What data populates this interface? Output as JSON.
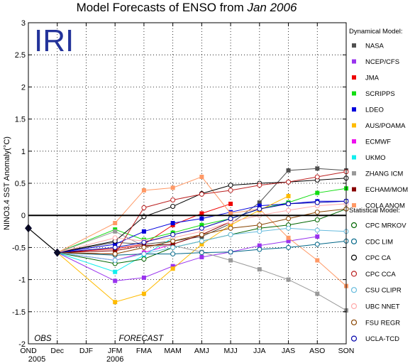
{
  "chart_data": {
    "type": "line",
    "title_main": "Model Forecasts of ENSO from ",
    "title_date": "Jan 2006",
    "logo_text": "IRI",
    "ylabel": "NINO3.4 SST Anomaly(°C)",
    "ylim": [
      -2,
      3
    ],
    "yticks": [
      -2,
      -1.5,
      -1,
      -0.5,
      0,
      0.5,
      1,
      1.5,
      2,
      2.5,
      3
    ],
    "x_labels": [
      "OND",
      "Dec",
      "DJF",
      "JFM",
      "FMA",
      "MAM",
      "AMJ",
      "MJJ",
      "JJA",
      "JAS",
      "ASO",
      "SON"
    ],
    "year_labels": [
      {
        "text": "2005",
        "x_index": 0
      },
      {
        "text": "2006",
        "x_index": 3
      }
    ],
    "annotations": [
      {
        "text": "OBS",
        "x_index": 0.5
      },
      {
        "text": "FORECAST",
        "x_index": 3.9
      }
    ],
    "grid": true,
    "observed": {
      "x": [
        0,
        1
      ],
      "y": [
        -0.2,
        -0.58
      ]
    },
    "forecast_start": {
      "x": 1,
      "y": -0.58
    },
    "dynamical_title": "Dynamical Model:",
    "statistical_title": "Statistical Model:",
    "dynamical": [
      {
        "name": "NASA",
        "color": "#505050",
        "values": [
          -0.42,
          -0.45,
          -0.4,
          -0.33,
          -0.13,
          0.2,
          0.7,
          0.73,
          0.7
        ]
      },
      {
        "name": "NCEP/CFS",
        "color": "#9933ee",
        "values": [
          -1.02,
          -0.97,
          -0.79,
          -0.65,
          -0.57,
          -0.47,
          -0.4,
          -0.33,
          null
        ]
      },
      {
        "name": "JMA",
        "color": "#ee0000",
        "values": [
          -0.52,
          -0.45,
          -0.15,
          0.03,
          0.18,
          null,
          null,
          null,
          null
        ]
      },
      {
        "name": "SCRIPPS",
        "color": "#11dd11",
        "values": [
          -0.22,
          -0.38,
          -0.27,
          -0.15,
          -0.05,
          0.1,
          0.2,
          0.35,
          0.42
        ]
      },
      {
        "name": "LDEO",
        "color": "#0000dd",
        "values": [
          -0.45,
          -0.25,
          -0.12,
          -0.05,
          0.05,
          0.15,
          0.18,
          0.22,
          0.22
        ]
      },
      {
        "name": "AUS/POAMA",
        "color": "#ffbb00",
        "values": [
          -1.35,
          -1.22,
          -0.83,
          -0.45,
          -0.15,
          0.08,
          0.3,
          null,
          null
        ]
      },
      {
        "name": "ECMWF",
        "color": "#ee11ee",
        "values": [
          -0.7,
          -0.58,
          -0.45,
          null,
          null,
          null,
          null,
          null,
          null
        ]
      },
      {
        "name": "UKMO",
        "color": "#11eeee",
        "values": [
          -0.88,
          -0.62,
          -0.35,
          null,
          null,
          null,
          null,
          null,
          null
        ]
      },
      {
        "name": "ZHANG ICM",
        "color": "#999999",
        "values": [
          -0.25,
          -0.48,
          -0.47,
          -0.57,
          -0.7,
          -0.84,
          -1.0,
          -1.22,
          -1.48
        ]
      },
      {
        "name": "ECHAM/MOM",
        "color": "#880000",
        "values": [
          -0.55,
          -0.47,
          -0.45,
          -0.3,
          -0.1,
          null,
          null,
          null,
          null
        ]
      },
      {
        "name": "COLA ANOM",
        "color": "#ff9966",
        "values": [
          -0.12,
          0.39,
          0.43,
          0.6,
          0.03,
          0.1,
          -0.35,
          -0.7,
          -1.1
        ]
      }
    ],
    "statistical": [
      {
        "name": "CPC MRKOV",
        "color": "#006600",
        "values": [
          -0.75,
          -0.68,
          -0.5,
          -0.4,
          -0.3,
          -0.2,
          -0.15,
          -0.07,
          0.1
        ]
      },
      {
        "name": "CDC LIM",
        "color": "#006688",
        "values": [
          -0.62,
          -0.6,
          -0.6,
          -0.58,
          -0.57,
          -0.53,
          -0.5,
          -0.45,
          -0.4
        ]
      },
      {
        "name": "CPC CA",
        "color": "#000000",
        "values": [
          -0.4,
          -0.02,
          0.14,
          0.34,
          0.47,
          0.5,
          0.52,
          0.55,
          0.58
        ]
      },
      {
        "name": "CPC CCA",
        "color": "#bb2222",
        "values": [
          -0.6,
          0.12,
          0.24,
          0.33,
          0.39,
          0.47,
          0.52,
          0.6,
          0.68
        ]
      },
      {
        "name": "CSU CLIPR",
        "color": "#66bbdd",
        "values": [
          -0.7,
          -0.6,
          -0.5,
          -0.4,
          -0.3,
          -0.25,
          -0.2,
          -0.23,
          -0.25
        ]
      },
      {
        "name": "UBC NNET",
        "color": "#ffaaaa",
        "values": [
          -0.35,
          -0.4,
          -0.35,
          -0.25,
          -0.1,
          0.0,
          0.08,
          0.15,
          0.18
        ]
      },
      {
        "name": "FSU REGR",
        "color": "#884400",
        "values": [
          -0.6,
          -0.5,
          -0.4,
          -0.3,
          -0.2,
          -0.15,
          -0.05,
          0.05,
          0.1
        ]
      },
      {
        "name": "UCLA-TCD",
        "color": "#0000aa",
        "values": [
          -0.5,
          -0.42,
          -0.3,
          -0.2,
          -0.05,
          0.1,
          0.18,
          0.2,
          0.22
        ]
      }
    ]
  }
}
